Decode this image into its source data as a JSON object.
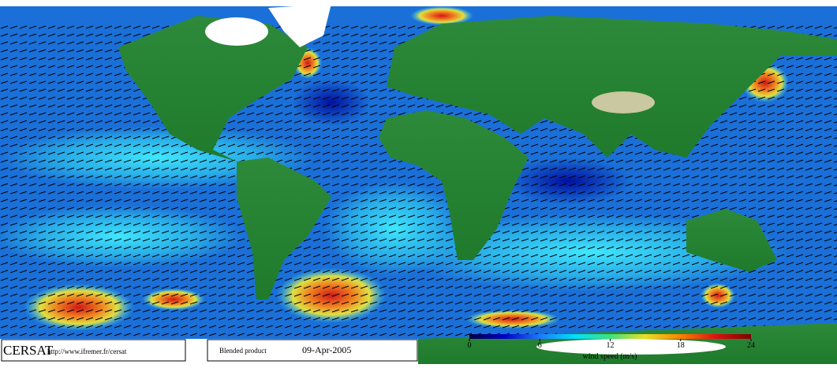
{
  "footer": {
    "logo": "CERSAT",
    "url": "http://www.ifremer.fr/cersat",
    "product": "Blended product",
    "date": "09-Apr-2005"
  },
  "colorbar": {
    "label": "wind speed (m/s)",
    "lim": [
      0,
      24
    ],
    "ticks": [
      0,
      6,
      12,
      18,
      24
    ],
    "colors": [
      "#000040",
      "#0000c8",
      "#1e78ff",
      "#00e0ff",
      "#40e080",
      "#e8e020",
      "#ff8000",
      "#e01010",
      "#800000"
    ]
  }
}
